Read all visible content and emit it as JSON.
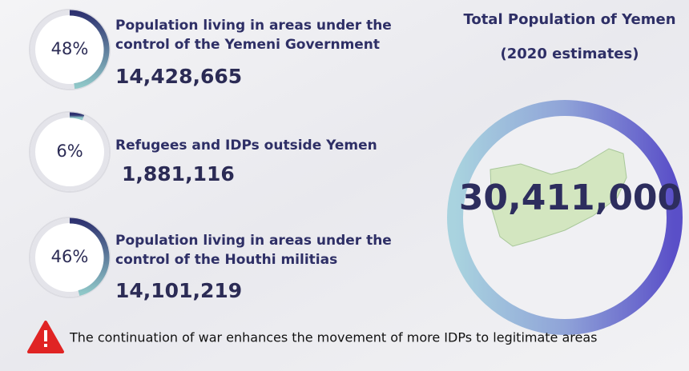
{
  "header": {
    "title": "Total Population of Yemen",
    "subtitle": "(2020 estimates)"
  },
  "total": "30,411,000",
  "items": [
    {
      "value": 48,
      "value_label": "48%",
      "label_lines": [
        "Population living in areas under the",
        "control of the Yemeni Government"
      ],
      "population": "14,428,665"
    },
    {
      "value": 6,
      "value_label": "6%",
      "label_lines": [
        "Refugees and IDPs outside Yemen"
      ],
      "population": "1,881,116"
    },
    {
      "value": 46,
      "value_label": "46%",
      "label_lines": [
        "Population living in areas under the",
        "control of the Houthi militias"
      ],
      "population": "14,101,219"
    }
  ],
  "note": "The continuation of war enhances the movement of more IDPs to legitimate areas"
}
